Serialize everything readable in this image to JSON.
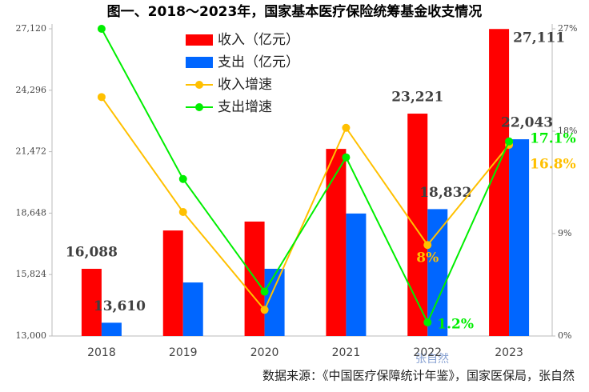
{
  "chart_data": {
    "type": "bar",
    "title": "图一、2018～2023年，国家基本医疗保险统筹基金收支情况",
    "categories": [
      "2018",
      "2019",
      "2020",
      "2021",
      "2022",
      "2023"
    ],
    "ylim": [
      13000,
      27120
    ],
    "yticks": [
      {
        "value": 13000,
        "label": "13,000"
      },
      {
        "value": 15824,
        "label": "15,824"
      },
      {
        "value": 18648,
        "label": "18,648"
      },
      {
        "value": 21472,
        "label": "21,472"
      },
      {
        "value": 24296,
        "label": "24,296"
      },
      {
        "value": 27120,
        "label": "27,120"
      }
    ],
    "y2lim": [
      0,
      27
    ],
    "y2ticks": [
      {
        "value": 0,
        "label": "0%"
      },
      {
        "value": 9,
        "label": "9%"
      },
      {
        "value": 18,
        "label": "18%"
      },
      {
        "value": 27,
        "label": "27%"
      }
    ],
    "series": [
      {
        "name": "收入（亿元）",
        "type": "bar",
        "color": "#ff0000",
        "values": [
          16088,
          17850,
          18260,
          21600,
          23221,
          27111
        ],
        "value_labels": [
          "16,088",
          null,
          null,
          null,
          "23,221",
          "27,111"
        ]
      },
      {
        "name": "支出（亿元）",
        "type": "bar",
        "color": "#0066ff",
        "values": [
          13610,
          15460,
          16090,
          18630,
          18832,
          22043
        ],
        "value_labels": [
          "13,610",
          null,
          null,
          null,
          "18,832",
          "22,043"
        ]
      },
      {
        "name": "收入增速",
        "type": "line",
        "axis": "y2",
        "color": "#ffc000",
        "values": [
          21,
          10.9,
          2.3,
          18.3,
          8,
          16.8
        ],
        "value_labels": [
          null,
          null,
          null,
          null,
          "8%",
          "16.8%"
        ]
      },
      {
        "name": "支出增速",
        "type": "line",
        "axis": "y2",
        "color": "#00ee00",
        "values": [
          27,
          13.8,
          3.9,
          15.7,
          1.2,
          17.1
        ],
        "value_labels": [
          null,
          null,
          null,
          null,
          "1.2%",
          "17.1%"
        ]
      }
    ],
    "watermark": "张自然",
    "source": "数据来源：《中国医疗保障统计年鉴》，国家医保局，张自然"
  }
}
